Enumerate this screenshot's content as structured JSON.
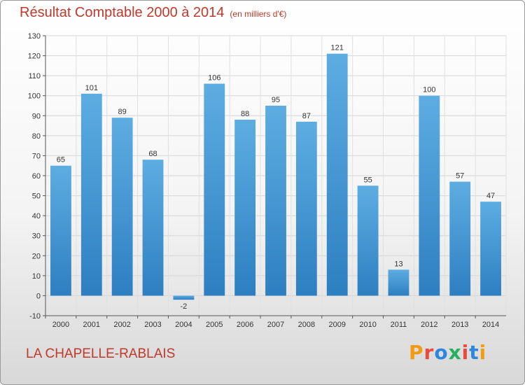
{
  "header": {
    "title": "Résultat Comptable 2000 à 2014",
    "subtitle": "(en milliers d'€)"
  },
  "footer": {
    "commune": "LA CHAPELLE-RABLAIS",
    "logo": {
      "letters": [
        "P",
        "r",
        "o",
        "x",
        "i",
        "t",
        "i"
      ],
      "colors": [
        "#f39c12",
        "#e74c3c",
        "#2e86de",
        "#27ae60",
        "#e74c3c",
        "#2e86de",
        "#f39c12"
      ]
    }
  },
  "chart_data": {
    "type": "bar",
    "categories": [
      "2000",
      "2001",
      "2002",
      "2003",
      "2004",
      "2005",
      "2006",
      "2007",
      "2008",
      "2009",
      "2010",
      "2011",
      "2012",
      "2013",
      "2014"
    ],
    "values": [
      65,
      101,
      89,
      68,
      -2,
      106,
      88,
      95,
      87,
      121,
      55,
      13,
      100,
      57,
      47
    ],
    "data_labels": [
      "65",
      "101",
      "89",
      "68",
      "-2",
      "106",
      "88",
      "95",
      "87",
      "121",
      "55",
      "13",
      "100",
      "57",
      "47"
    ],
    "yticks": [
      -10,
      0,
      10,
      20,
      30,
      40,
      50,
      60,
      70,
      80,
      90,
      100,
      110,
      120,
      130
    ],
    "ylim": [
      -10,
      130
    ],
    "grid": true,
    "bar_color_top": "#5dade2",
    "bar_color_bottom": "#2e7fc1"
  }
}
